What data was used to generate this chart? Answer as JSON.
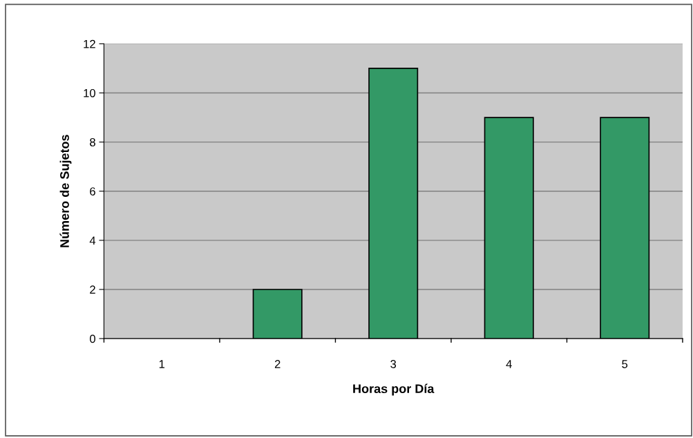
{
  "chart_data": {
    "type": "bar",
    "xlabel": "Horas por Día",
    "ylabel": "Número de Sujetos",
    "categories": [
      "1",
      "2",
      "3",
      "4",
      "5"
    ],
    "values": [
      0,
      2,
      11,
      9,
      9
    ],
    "color": "#339966",
    "ylim": [
      0,
      12
    ],
    "yticks": [
      0,
      2,
      4,
      6,
      8,
      10,
      12
    ],
    "grid": "y"
  }
}
